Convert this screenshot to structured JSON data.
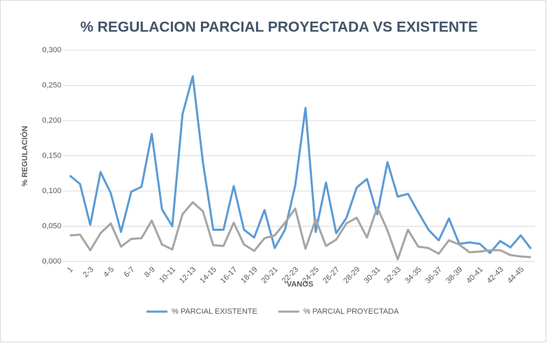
{
  "chart_data": {
    "type": "line",
    "title": "% REGULACION PARCIAL PROYECTADA VS EXISTENTE",
    "x_label": "VANOS",
    "y_label": "% REGULACIÓN",
    "categories": [
      "1",
      null,
      "2-3",
      null,
      "4-5",
      null,
      "6-7",
      null,
      "8-9",
      null,
      "10-11",
      null,
      "12-13",
      null,
      "14-15",
      null,
      "16-17",
      null,
      "18-19",
      null,
      "20-21",
      null,
      "22-23",
      null,
      "24-25",
      null,
      "26-27",
      null,
      "28-29",
      null,
      "30-31",
      null,
      "32-33",
      null,
      "34-35",
      null,
      "36-37",
      null,
      "38-39",
      null,
      "40-41",
      null,
      "42-43",
      null,
      "44-45",
      null
    ],
    "series": [
      {
        "name": "% PARCIAL EXISTENTE",
        "color": "#5b9bd5",
        "values": [
          0.122,
          0.11,
          0.052,
          0.127,
          0.097,
          0.042,
          0.099,
          0.106,
          0.181,
          0.074,
          0.05,
          0.209,
          0.263,
          0.14,
          0.045,
          0.045,
          0.107,
          0.045,
          0.034,
          0.073,
          0.019,
          0.045,
          0.108,
          0.218,
          0.042,
          0.112,
          0.04,
          0.062,
          0.105,
          0.117,
          0.067,
          0.141,
          0.092,
          0.096,
          0.07,
          0.045,
          0.03,
          0.061,
          0.025,
          0.027,
          0.025,
          0.012,
          0.029,
          0.02,
          0.037,
          0.018
        ]
      },
      {
        "name": "% PARCIAL PROYECTADA",
        "color": "#a5a5a5",
        "values": [
          0.037,
          0.038,
          0.016,
          0.04,
          0.054,
          0.021,
          0.032,
          0.033,
          0.058,
          0.024,
          0.017,
          0.067,
          0.084,
          0.071,
          0.023,
          0.022,
          0.055,
          0.024,
          0.015,
          0.033,
          0.037,
          0.055,
          0.075,
          0.018,
          0.06,
          0.022,
          0.031,
          0.054,
          0.062,
          0.034,
          0.077,
          0.044,
          0.003,
          0.045,
          0.021,
          0.019,
          0.011,
          0.03,
          0.024,
          0.013,
          0.014,
          0.016,
          0.016,
          0.009,
          0.007,
          0.006
        ]
      }
    ],
    "ylim": [
      0,
      0.3
    ],
    "yticks": [
      {
        "value": 0,
        "label": "0,000"
      },
      {
        "value": 0.05,
        "label": "0,050"
      },
      {
        "value": 0.1,
        "label": "0,100"
      },
      {
        "value": 0.15,
        "label": "0,150"
      },
      {
        "value": 0.2,
        "label": "0,200"
      },
      {
        "value": 0.25,
        "label": "0,250"
      },
      {
        "value": 0.3,
        "label": "0,300"
      }
    ],
    "grid": true,
    "legend": "bottom"
  }
}
